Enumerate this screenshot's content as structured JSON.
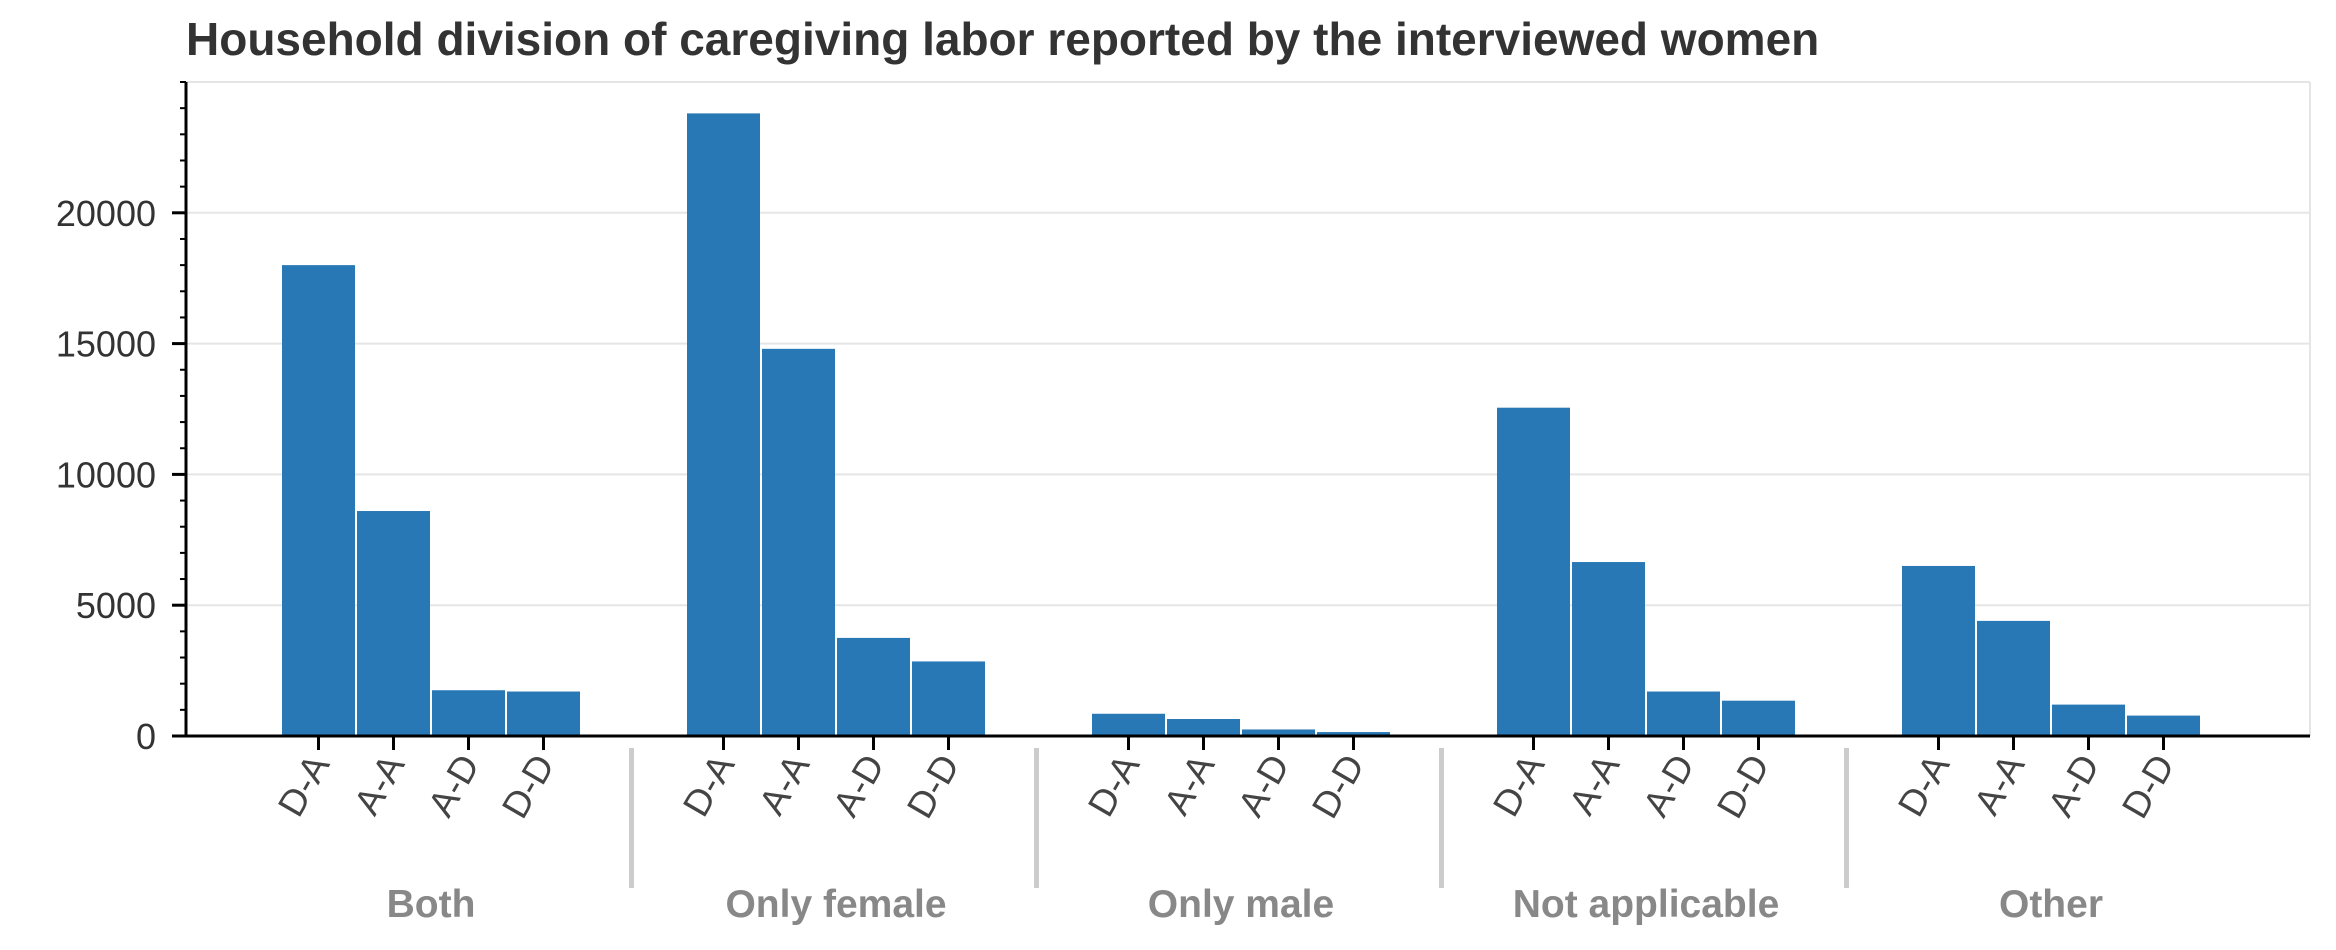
{
  "chart_data": {
    "type": "bar",
    "title": "Household division of caregiving labor reported by the interviewed women",
    "xlabel": "",
    "ylabel": "",
    "groups": [
      "Both",
      "Only female",
      "Only male",
      "Not applicable",
      "Other"
    ],
    "subcategories": [
      "D-A",
      "A-A",
      "A-D",
      "D-D"
    ],
    "values": [
      [
        18000,
        8600,
        1750,
        1700
      ],
      [
        23800,
        14800,
        3750,
        2850
      ],
      [
        850,
        650,
        250,
        150
      ],
      [
        12550,
        6650,
        1700,
        1350
      ],
      [
        6500,
        4400,
        1200,
        780
      ]
    ],
    "ylim": [
      0,
      25000
    ],
    "yticks": [
      0,
      5000,
      10000,
      15000,
      20000
    ],
    "ytick_labels": [
      "0",
      "5000",
      "10000",
      "15000",
      "20000"
    ],
    "y_minor_step": 1000,
    "grid": true,
    "bar_color": "#2878b5",
    "grid_color": "#e5e5e5",
    "axis_color": "#000000",
    "group_separator_color": "#cccccc",
    "legend": "none"
  }
}
